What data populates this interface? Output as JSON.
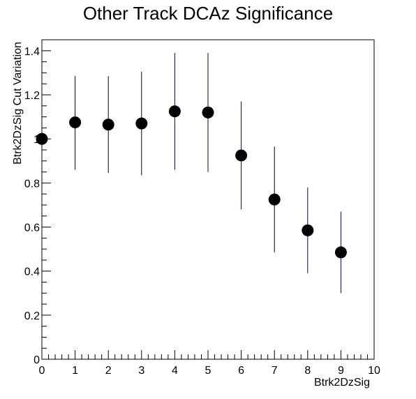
{
  "chart_data": {
    "type": "scatter",
    "title": "Other Track DCAz Significance",
    "xlabel": "Btrk2DzSig",
    "ylabel": "Btrk2DzSig Cut Variation",
    "xlim": [
      0,
      10
    ],
    "ylim": [
      0,
      1.45
    ],
    "xticks": [
      0,
      1,
      2,
      3,
      4,
      5,
      6,
      7,
      8,
      9,
      10
    ],
    "yticks": [
      0,
      0.2,
      0.4,
      0.6,
      0.8,
      1,
      1.2,
      1.4
    ],
    "ytick_labels": [
      "0",
      "0.2",
      "0.4",
      "0.6",
      "0.8",
      "1",
      "1.2",
      "1.4"
    ],
    "grid": false,
    "marker_color": "#000000",
    "error_bar_colors": [
      "#000000",
      "#000000",
      "#000000",
      "#000000",
      "#000080",
      "#000080",
      "#000080",
      "#000000",
      "#000080",
      "#000080"
    ],
    "points": [
      {
        "x": 0,
        "y": 1.0,
        "yerr_low": 0.19,
        "yerr_high": 0.19
      },
      {
        "x": 1,
        "y": 1.075,
        "yerr_low": 0.215,
        "yerr_high": 0.21
      },
      {
        "x": 2,
        "y": 1.065,
        "yerr_low": 0.22,
        "yerr_high": 0.22
      },
      {
        "x": 3,
        "y": 1.07,
        "yerr_low": 0.235,
        "yerr_high": 0.235
      },
      {
        "x": 4,
        "y": 1.125,
        "yerr_low": 0.265,
        "yerr_high": 0.265
      },
      {
        "x": 5,
        "y": 1.12,
        "yerr_low": 0.27,
        "yerr_high": 0.27
      },
      {
        "x": 6,
        "y": 0.925,
        "yerr_low": 0.245,
        "yerr_high": 0.245
      },
      {
        "x": 7,
        "y": 0.725,
        "yerr_low": 0.24,
        "yerr_high": 0.24
      },
      {
        "x": 8,
        "y": 0.585,
        "yerr_low": 0.195,
        "yerr_high": 0.195
      },
      {
        "x": 9,
        "y": 0.485,
        "yerr_low": 0.185,
        "yerr_high": 0.185
      }
    ]
  }
}
